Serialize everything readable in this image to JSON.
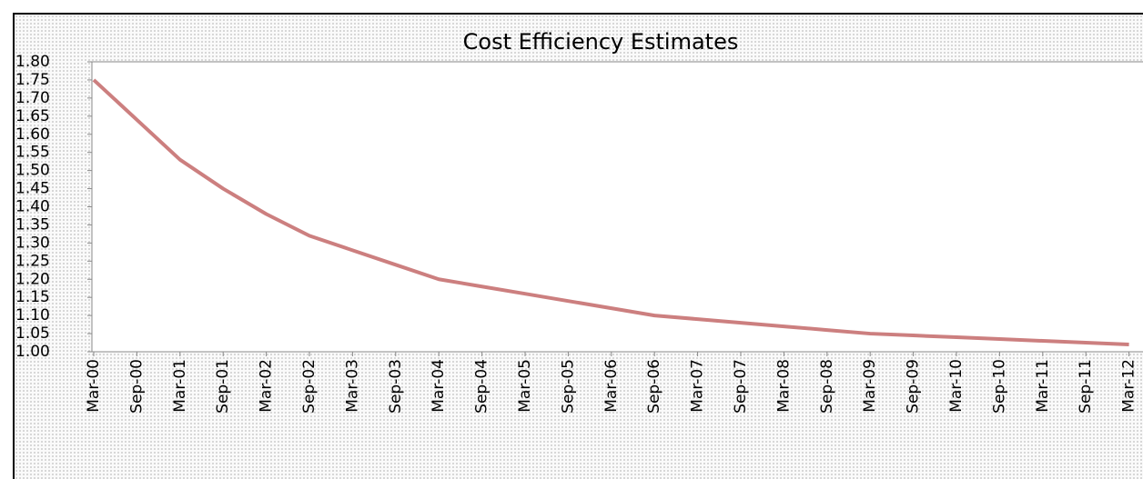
{
  "chart_data": {
    "type": "line",
    "title": "Cost Efficiency Estimates",
    "categories": [
      "Mar-00",
      "Sep-00",
      "Mar-01",
      "Sep-01",
      "Mar-02",
      "Sep-02",
      "Mar-03",
      "Sep-03",
      "Mar-04",
      "Sep-04",
      "Mar-05",
      "Sep-05",
      "Mar-06",
      "Sep-06",
      "Mar-07",
      "Sep-07",
      "Mar-08",
      "Sep-08",
      "Mar-09",
      "Sep-09",
      "Mar-10",
      "Sep-10",
      "Mar-11",
      "Sep-11",
      "Mar-12"
    ],
    "series": [
      {
        "color": "#cc7f7f",
        "values": [
          1.75,
          1.64,
          1.53,
          1.45,
          1.38,
          1.32,
          1.28,
          1.24,
          1.2,
          1.18,
          1.16,
          1.14,
          1.12,
          1.1,
          1.09,
          1.08,
          1.07,
          1.06,
          1.05,
          1.045,
          1.04,
          1.035,
          1.03,
          1.025,
          1.02
        ]
      }
    ],
    "ylim": [
      1.0,
      1.8
    ],
    "yticks": [
      {
        "value": 1.0,
        "label": "1.00"
      },
      1.05,
      {
        "value": 1.1,
        "label": "1.10"
      },
      1.15,
      {
        "value": 1.2,
        "label": "1.20"
      },
      1.25,
      {
        "value": 1.3,
        "label": "1.30"
      },
      1.35,
      {
        "value": 1.4,
        "label": "1.40"
      },
      1.45,
      {
        "value": 1.5,
        "label": "1.50"
      },
      1.55,
      {
        "value": 1.6,
        "label": "1.60"
      },
      1.65,
      {
        "value": 1.7,
        "label": "1.70"
      },
      1.75,
      {
        "value": 1.8,
        "label": "1.80"
      }
    ]
  }
}
